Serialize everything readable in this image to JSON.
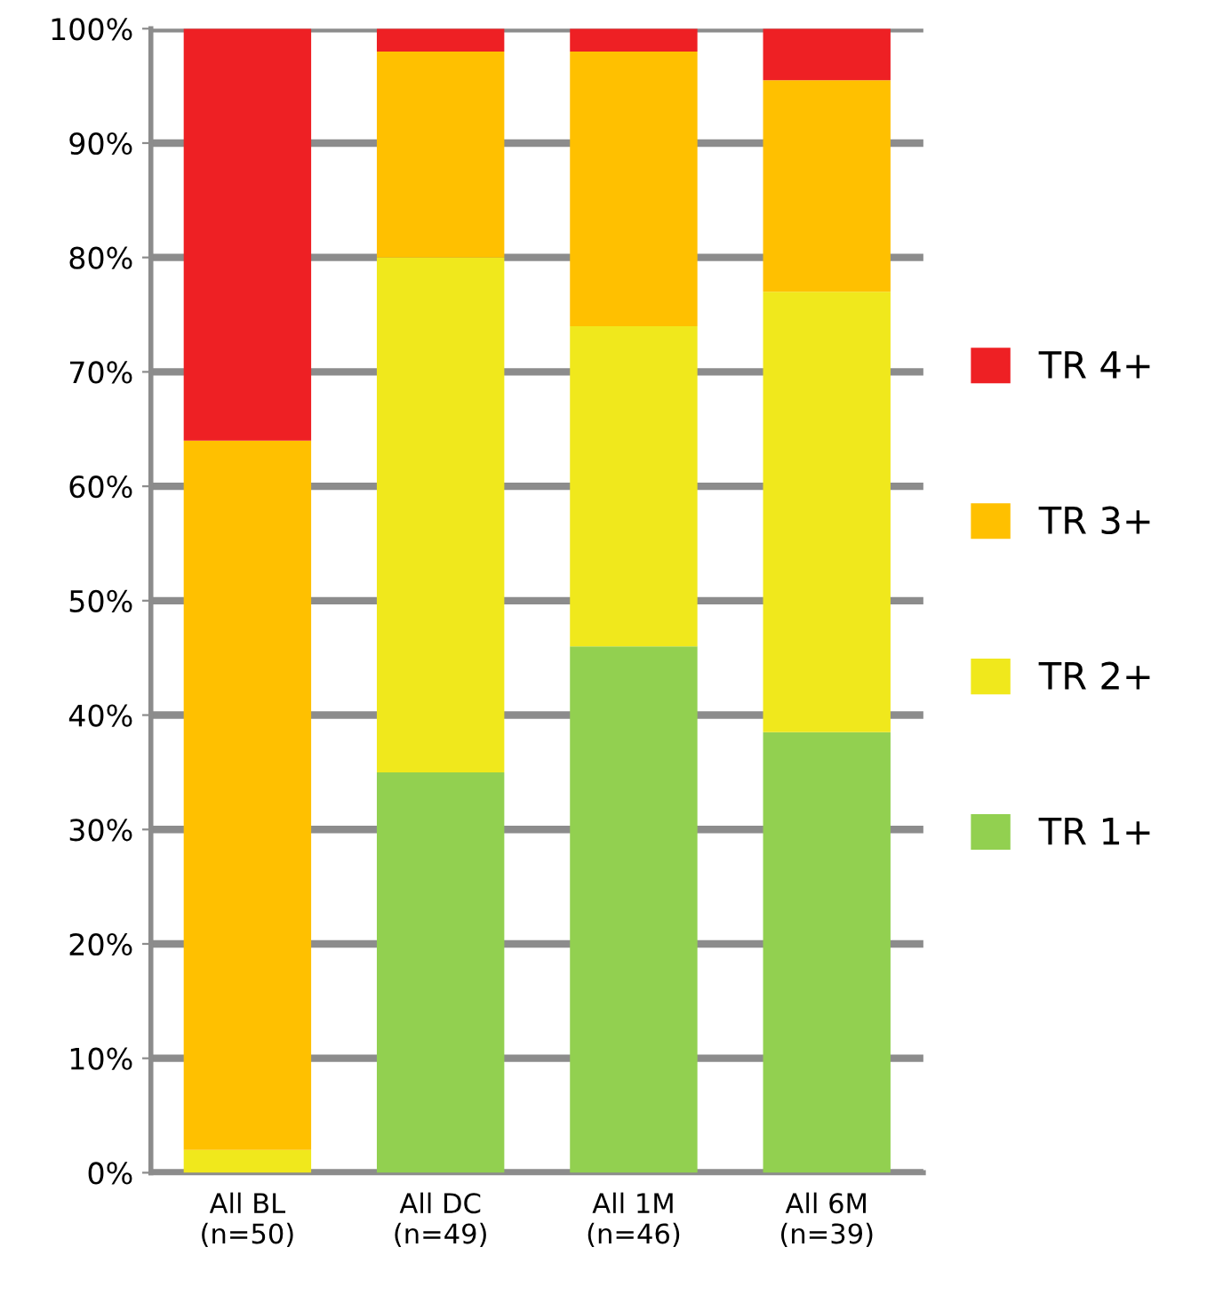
{
  "chart_data": {
    "type": "bar",
    "stacked": true,
    "categories": [
      "All BL\n(n=50)",
      "All DC\n(n=49)",
      "All 1M\n(n=46)",
      "All 6M\n(n=39)"
    ],
    "series": [
      {
        "name": "TR 1+",
        "color": "#92d050",
        "values": [
          0,
          35,
          46,
          38.5
        ]
      },
      {
        "name": "TR 2+",
        "color": "#f0e81c",
        "values": [
          2,
          45,
          28,
          38.5
        ]
      },
      {
        "name": "TR 3+",
        "color": "#ffc000",
        "values": [
          62,
          18,
          24,
          18.5
        ]
      },
      {
        "name": "TR 4+",
        "color": "#ee2024",
        "values": [
          36,
          2,
          2,
          4.5
        ]
      }
    ],
    "ylim": [
      0,
      100
    ],
    "yticks": [
      {
        "value": 0,
        "label": "0%"
      },
      {
        "value": 10,
        "label": "10%"
      },
      {
        "value": 20,
        "label": "20%"
      },
      {
        "value": 30,
        "label": "30%"
      },
      {
        "value": 40,
        "label": "40%"
      },
      {
        "value": 50,
        "label": "50%"
      },
      {
        "value": 60,
        "label": "60%"
      },
      {
        "value": 70,
        "label": "70%"
      },
      {
        "value": 80,
        "label": "80%"
      },
      {
        "value": 90,
        "label": "90%"
      },
      {
        "value": 100,
        "label": "100%"
      }
    ],
    "grid": "y",
    "legend": "right"
  }
}
